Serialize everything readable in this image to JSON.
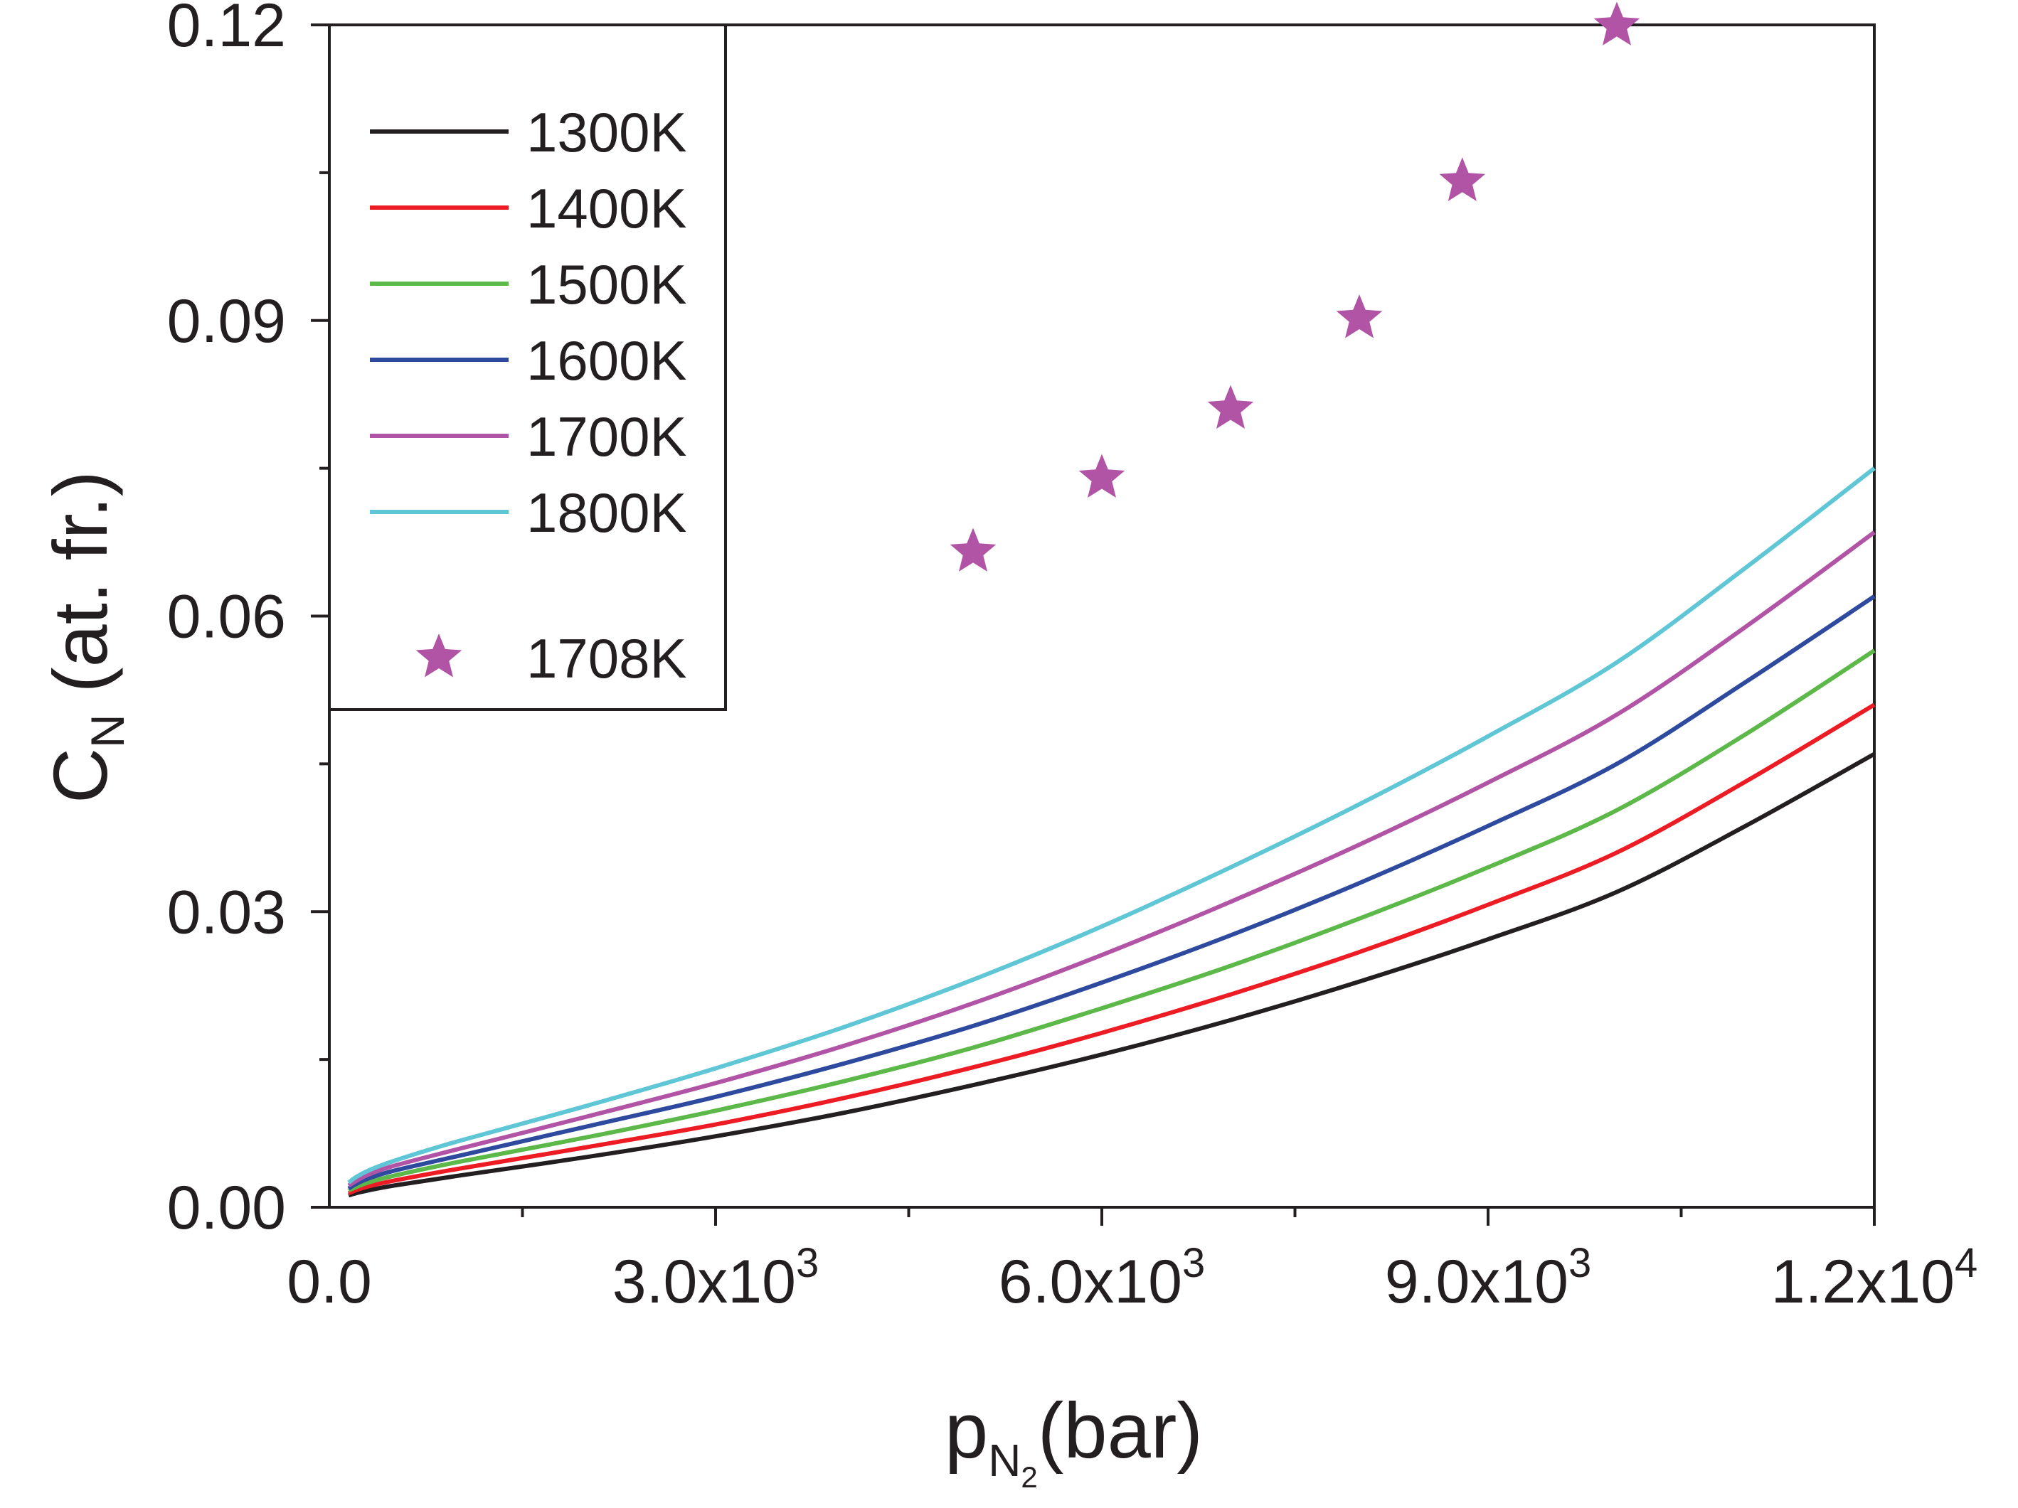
{
  "chart_data": {
    "type": "line",
    "title": "",
    "x_axis": {
      "title_main": "p",
      "title_sub": "N",
      "title_subsub": "2",
      "title_unit": "(bar)",
      "range": [
        0,
        12000
      ],
      "ticks": [
        {
          "value": 0,
          "mantissa": "0.0",
          "exp": ""
        },
        {
          "value": 3000,
          "mantissa": "3.0x10",
          "exp": "3"
        },
        {
          "value": 6000,
          "mantissa": "6.0x10",
          "exp": "3"
        },
        {
          "value": 9000,
          "mantissa": "9.0x10",
          "exp": "3"
        },
        {
          "value": 12000,
          "mantissa": "1.2x10",
          "exp": "4"
        }
      ],
      "minor_ticks": [
        1500,
        4500,
        7500,
        10500
      ]
    },
    "y_axis": {
      "title_main": "C",
      "title_sub": "N",
      "title_unit": " (at. fr.)",
      "range": [
        0,
        0.12
      ],
      "ticks": [
        {
          "value": 0.0,
          "label": "0.00"
        },
        {
          "value": 0.03,
          "label": "0.03"
        },
        {
          "value": 0.06,
          "label": "0.06"
        },
        {
          "value": 0.09,
          "label": "0.09"
        },
        {
          "value": 0.12,
          "label": "0.12"
        }
      ],
      "minor_ticks": [
        0.015,
        0.045,
        0.075,
        0.105
      ]
    },
    "x_points": [
      150,
      200,
      300,
      500,
      1000,
      2000,
      3000,
      4000,
      5000,
      6000,
      7000,
      8000,
      9000,
      10000,
      11000,
      12000
    ],
    "series": [
      {
        "name": "1300K",
        "color": "#231f20",
        "values": [
          0.0012,
          0.0014,
          0.0017,
          0.0022,
          0.0032,
          0.0051,
          0.0072,
          0.0096,
          0.0124,
          0.0155,
          0.019,
          0.0229,
          0.0272,
          0.032,
          0.0387,
          0.046
        ]
      },
      {
        "name": "1400K",
        "color": "#ed1c24",
        "values": [
          0.0014,
          0.0017,
          0.0021,
          0.0027,
          0.0039,
          0.0061,
          0.0084,
          0.0111,
          0.0142,
          0.0177,
          0.0216,
          0.0259,
          0.0307,
          0.036,
          0.0432,
          0.051
        ]
      },
      {
        "name": "1500K",
        "color": "#5cb848",
        "values": [
          0.0017,
          0.002,
          0.0025,
          0.0032,
          0.0046,
          0.0071,
          0.0098,
          0.0128,
          0.0162,
          0.0202,
          0.0245,
          0.0293,
          0.0345,
          0.0403,
          0.048,
          0.0565
        ]
      },
      {
        "name": "1600K",
        "color": "#2e4a9e",
        "values": [
          0.0019,
          0.0023,
          0.0029,
          0.0037,
          0.0052,
          0.0082,
          0.0112,
          0.0146,
          0.0184,
          0.0228,
          0.0276,
          0.0329,
          0.0387,
          0.045,
          0.0533,
          0.062
        ]
      },
      {
        "name": "1700K",
        "color": "#b154a6",
        "values": [
          0.0022,
          0.0026,
          0.0033,
          0.0042,
          0.0059,
          0.0092,
          0.0126,
          0.0164,
          0.0207,
          0.0256,
          0.031,
          0.0368,
          0.0431,
          0.05,
          0.0589,
          0.0685
        ]
      },
      {
        "name": "1800K",
        "color": "#5fc6d6",
        "values": [
          0.0025,
          0.003,
          0.0037,
          0.0047,
          0.0067,
          0.0103,
          0.0141,
          0.0183,
          0.0231,
          0.0285,
          0.0345,
          0.0409,
          0.0478,
          0.0553,
          0.0649,
          0.075
        ]
      }
    ],
    "scatter": {
      "name": "1708K",
      "marker": "star",
      "color": "#b154a6",
      "points": [
        {
          "x": 5000,
          "y": 0.0665
        },
        {
          "x": 6000,
          "y": 0.074
        },
        {
          "x": 7000,
          "y": 0.081
        },
        {
          "x": 8000,
          "y": 0.0902
        },
        {
          "x": 8800,
          "y": 0.1041
        },
        {
          "x": 10000,
          "y": 0.1199
        }
      ]
    },
    "legend": {
      "position": "top-left",
      "entries": [
        "1300K",
        "1400K",
        "1500K",
        "1600K",
        "1700K",
        "1800K",
        "1708K"
      ]
    }
  }
}
